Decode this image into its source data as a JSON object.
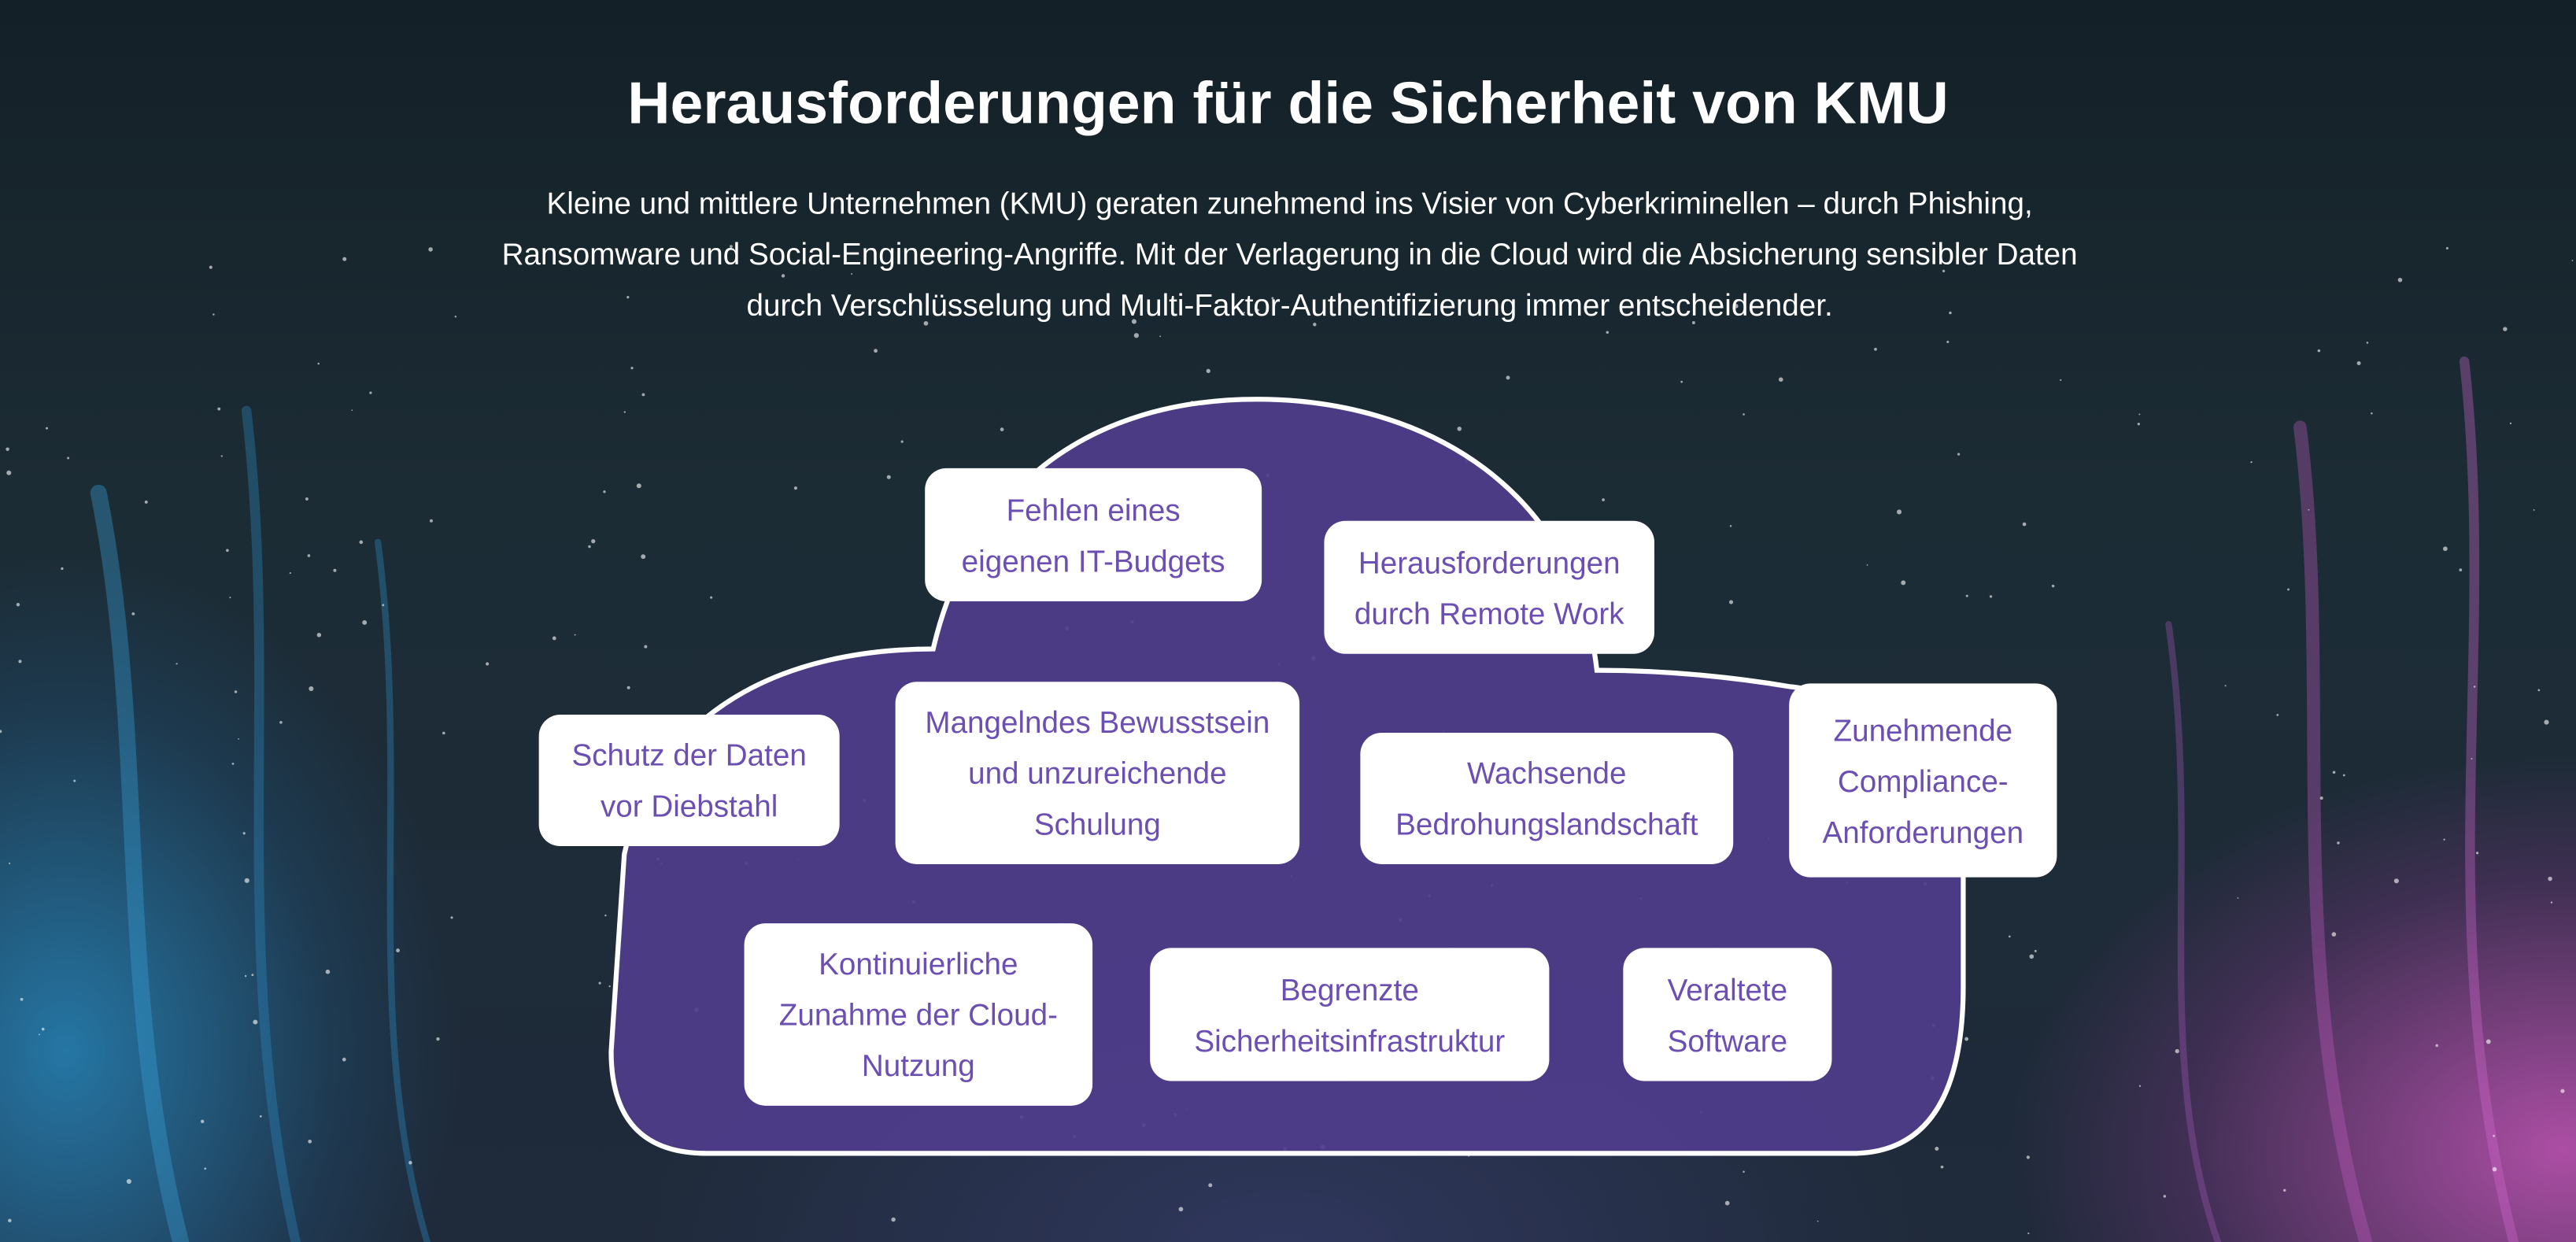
{
  "title": "Herausforderungen für die Sicherheit von KMU",
  "intro": "Kleine und mittlere Unternehmen (KMU) geraten zunehmend ins Visier von Cyberkriminellen – durch Phishing, Ransomware und Social-Engineering-Angriffe. Mit der Verlagerung in die Cloud wird die Absicherung sensibler Daten durch Verschlüsselung und Multi-Faktor-Authentifizierung immer entscheidender.",
  "colors": {
    "cloud_fill": "#4f3d8c",
    "box_text": "#6b4fb3",
    "box_bg": "#ffffff"
  },
  "challenges": [
    "Fehlen eines\neigenen IT-Budgets",
    "Herausforderungen\ndurch Remote Work",
    "Schutz der Daten\nvor Diebstahl",
    "Mangelndes Bewusstsein\nund unzureichende\nSchulung",
    "Wachsende\nBedrohungslandschaft",
    "Zunehmende\nCompliance-\nAnforderungen",
    "Kontinuierliche\nZunahme der Cloud-\nNutzung",
    "Begrenzte\nSicherheitsinfrastruktur",
    "Veraltete\nSoftware"
  ]
}
